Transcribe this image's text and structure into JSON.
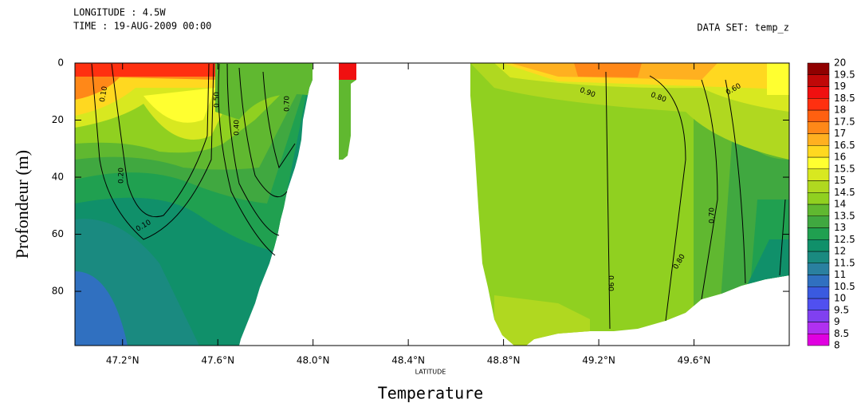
{
  "chart_data": {
    "type": "contourf",
    "header": [
      "LONGITUDE : 4.5W",
      "TIME : 19-AUG-2009 00:00"
    ],
    "dataset": "DATA SET: temp_z",
    "title": "Temperature",
    "xlabel": "LATITUDE",
    "ylabel": "Profondeur (m)",
    "xlim": [
      47.0,
      50.0
    ],
    "xticks": [
      {
        "value": 47.2,
        "label": "47.2°N"
      },
      {
        "value": 47.6,
        "label": "47.6°N"
      },
      {
        "value": 48.0,
        "label": "48.0°N"
      },
      {
        "value": 48.4,
        "label": "48.4°N"
      },
      {
        "value": 48.8,
        "label": "48.8°N"
      },
      {
        "value": 49.2,
        "label": "49.2°N"
      },
      {
        "value": 49.6,
        "label": "49.6°N"
      }
    ],
    "ylim": [
      0,
      99
    ],
    "yticks": [
      0,
      20,
      40,
      60,
      80
    ],
    "colorbar": {
      "levels": [
        8,
        8.5,
        9,
        9.5,
        10,
        10.5,
        11,
        11.5,
        12,
        12.5,
        13,
        13.5,
        14,
        14.5,
        15,
        15.5,
        16,
        16.5,
        17,
        17.5,
        18,
        18.5,
        19,
        19.5,
        20
      ],
      "colors": [
        "#e000e0",
        "#b030f0",
        "#8040f0",
        "#5050f0",
        "#3a5ae0",
        "#3070c0",
        "#2a80a0",
        "#1a8a80",
        "#10906a",
        "#20a050",
        "#40a840",
        "#60b830",
        "#90d020",
        "#b0d820",
        "#d8e820",
        "#ffff30",
        "#ffd820",
        "#ffb020",
        "#ff8818",
        "#ff6010",
        "#ff3010",
        "#f01010",
        "#c00808",
        "#900000"
      ]
    },
    "contour_labels": [
      {
        "value": 0.1,
        "label": "0.10"
      },
      {
        "value": 0.2,
        "label": "0.20"
      },
      {
        "value": 0.1,
        "label": "0.10"
      },
      {
        "value": 0.5,
        "label": "0.50"
      },
      {
        "value": 0.4,
        "label": "0.40"
      },
      {
        "value": 0.7,
        "label": "0.70"
      },
      {
        "value": 0.9,
        "label": "0.90"
      },
      {
        "value": 0.8,
        "label": "0.80"
      },
      {
        "value": 0.6,
        "label": "0.60"
      },
      {
        "value": 0.9,
        "label": "0.90"
      },
      {
        "value": 0.8,
        "label": "0.80"
      },
      {
        "value": 0.7,
        "label": "0.70"
      }
    ]
  }
}
